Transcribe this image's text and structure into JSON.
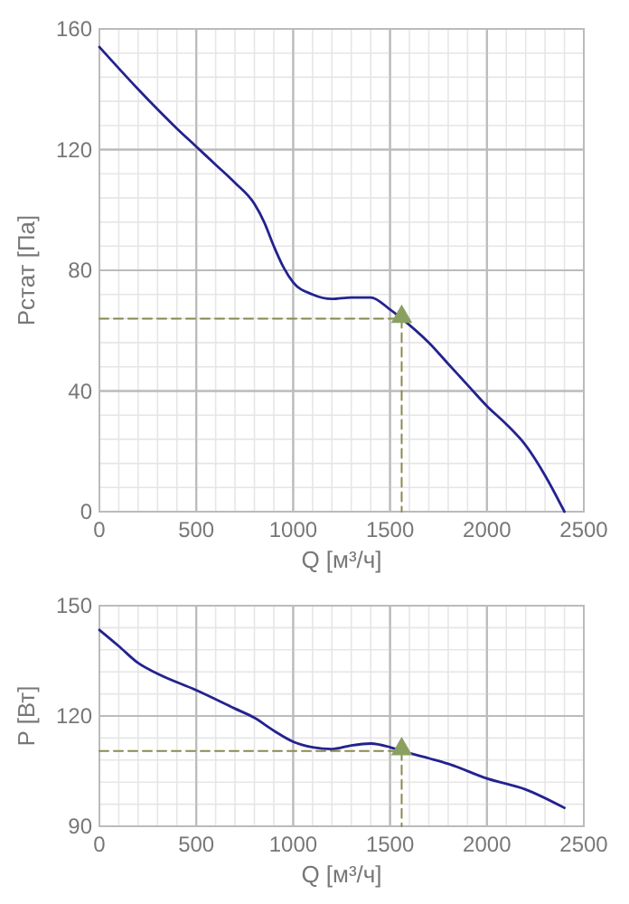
{
  "chart_data": [
    {
      "type": "line",
      "xlabel": "Q [м³/ч]",
      "ylabel": "Pстат [Па]",
      "xlim": [
        0,
        2500
      ],
      "ylim": [
        0,
        160
      ],
      "xticks": [
        0,
        {
          "value": 100,
          "label": null
        },
        {
          "value": 200,
          "label": null
        },
        {
          "value": 300,
          "label": null
        },
        {
          "value": 400,
          "label": null
        },
        500,
        {
          "value": 600,
          "label": null
        },
        {
          "value": 700,
          "label": null
        },
        {
          "value": 800,
          "label": null
        },
        {
          "value": 900,
          "label": null
        },
        1000,
        {
          "value": 1100,
          "label": null
        },
        {
          "value": 1200,
          "label": null
        },
        {
          "value": 1300,
          "label": null
        },
        {
          "value": 1400,
          "label": null
        },
        1500,
        {
          "value": 1600,
          "label": null
        },
        {
          "value": 1700,
          "label": null
        },
        {
          "value": 1800,
          "label": null
        },
        {
          "value": 1900,
          "label": null
        },
        2000,
        {
          "value": 2100,
          "label": null
        },
        {
          "value": 2200,
          "label": null
        },
        {
          "value": 2300,
          "label": null
        },
        {
          "value": 2400,
          "label": null
        },
        2500
      ],
      "yticks": [
        0,
        {
          "value": 8,
          "label": null
        },
        {
          "value": 16,
          "label": null
        },
        {
          "value": 24,
          "label": null
        },
        {
          "value": 32,
          "label": null
        },
        40,
        {
          "value": 48,
          "label": null
        },
        {
          "value": 56,
          "label": null
        },
        {
          "value": 64,
          "label": null
        },
        {
          "value": 72,
          "label": null
        },
        80,
        {
          "value": 88,
          "label": null
        },
        {
          "value": 96,
          "label": null
        },
        {
          "value": 104,
          "label": null
        },
        {
          "value": 112,
          "label": null
        },
        120,
        {
          "value": 128,
          "label": null
        },
        {
          "value": 136,
          "label": null
        },
        {
          "value": 144,
          "label": null
        },
        {
          "value": 152,
          "label": null
        },
        160
      ],
      "grid": true,
      "series": [
        {
          "type": "line",
          "color": "#24228f",
          "line_style": "solid",
          "marker": "none",
          "x": [
            0,
            200,
            400,
            500,
            600,
            700,
            800,
            850,
            900,
            950,
            1000,
            1100,
            1200,
            1300,
            1400,
            1500,
            1560,
            1700,
            1800,
            1900,
            2000,
            2100,
            2200,
            2300,
            2400
          ],
          "values": [
            154,
            140,
            127,
            121,
            115,
            109,
            102,
            96,
            88,
            81,
            76,
            72,
            70.5,
            71,
            71,
            67,
            64,
            56,
            49,
            42,
            35,
            29,
            22,
            12,
            0
          ]
        },
        {
          "type": "line",
          "color": "#8a8a50",
          "line_style": "dashed",
          "marker": "none",
          "x": [
            0,
            1560
          ],
          "values": [
            64,
            64
          ]
        },
        {
          "type": "line",
          "color": "#8a8a50",
          "line_style": "dashed",
          "marker": "none",
          "x": [
            1560,
            1560
          ],
          "values": [
            64,
            0
          ]
        },
        {
          "type": "scatter",
          "color": "#8aa060",
          "marker": "triangle",
          "x": [
            1560
          ],
          "values": [
            64
          ]
        }
      ]
    },
    {
      "type": "line",
      "xlabel": "Q [м³/ч]",
      "ylabel": "P [Вт]",
      "xlim": [
        0,
        2500
      ],
      "ylim": [
        90,
        150
      ],
      "xticks": [
        0,
        {
          "value": 100,
          "label": null
        },
        {
          "value": 200,
          "label": null
        },
        {
          "value": 300,
          "label": null
        },
        {
          "value": 400,
          "label": null
        },
        500,
        {
          "value": 600,
          "label": null
        },
        {
          "value": 700,
          "label": null
        },
        {
          "value": 800,
          "label": null
        },
        {
          "value": 900,
          "label": null
        },
        1000,
        {
          "value": 1100,
          "label": null
        },
        {
          "value": 1200,
          "label": null
        },
        {
          "value": 1300,
          "label": null
        },
        {
          "value": 1400,
          "label": null
        },
        1500,
        {
          "value": 1600,
          "label": null
        },
        {
          "value": 1700,
          "label": null
        },
        {
          "value": 1800,
          "label": null
        },
        {
          "value": 1900,
          "label": null
        },
        2000,
        {
          "value": 2100,
          "label": null
        },
        {
          "value": 2200,
          "label": null
        },
        {
          "value": 2300,
          "label": null
        },
        {
          "value": 2400,
          "label": null
        },
        2500
      ],
      "yticks": [
        90,
        {
          "value": 96,
          "label": null
        },
        {
          "value": 102,
          "label": null
        },
        {
          "value": 108,
          "label": null
        },
        {
          "value": 114,
          "label": null
        },
        120,
        {
          "value": 126,
          "label": null
        },
        {
          "value": 132,
          "label": null
        },
        {
          "value": 138,
          "label": null
        },
        {
          "value": 144,
          "label": null
        },
        150
      ],
      "grid": true,
      "series": [
        {
          "type": "line",
          "color": "#24228f",
          "line_style": "solid",
          "marker": "none",
          "x": [
            0,
            100,
            200,
            300,
            500,
            700,
            800,
            900,
            1000,
            1100,
            1200,
            1300,
            1400,
            1500,
            1560,
            1700,
            1800,
            2000,
            2200,
            2400
          ],
          "values": [
            143.4,
            139,
            134.4,
            131.5,
            127,
            122,
            119.5,
            116,
            113,
            111.5,
            111,
            112,
            112.5,
            111.5,
            110.5,
            108.5,
            107,
            103,
            100,
            95
          ]
        },
        {
          "type": "line",
          "color": "#8a8a50",
          "line_style": "dashed",
          "marker": "none",
          "x": [
            0,
            1560
          ],
          "values": [
            110.5,
            110.5
          ]
        },
        {
          "type": "line",
          "color": "#8a8a50",
          "line_style": "dashed",
          "marker": "none",
          "x": [
            1560,
            1560
          ],
          "values": [
            110.5,
            90
          ]
        },
        {
          "type": "scatter",
          "color": "#8aa060",
          "marker": "triangle",
          "x": [
            1560
          ],
          "values": [
            110.5
          ]
        }
      ]
    }
  ]
}
